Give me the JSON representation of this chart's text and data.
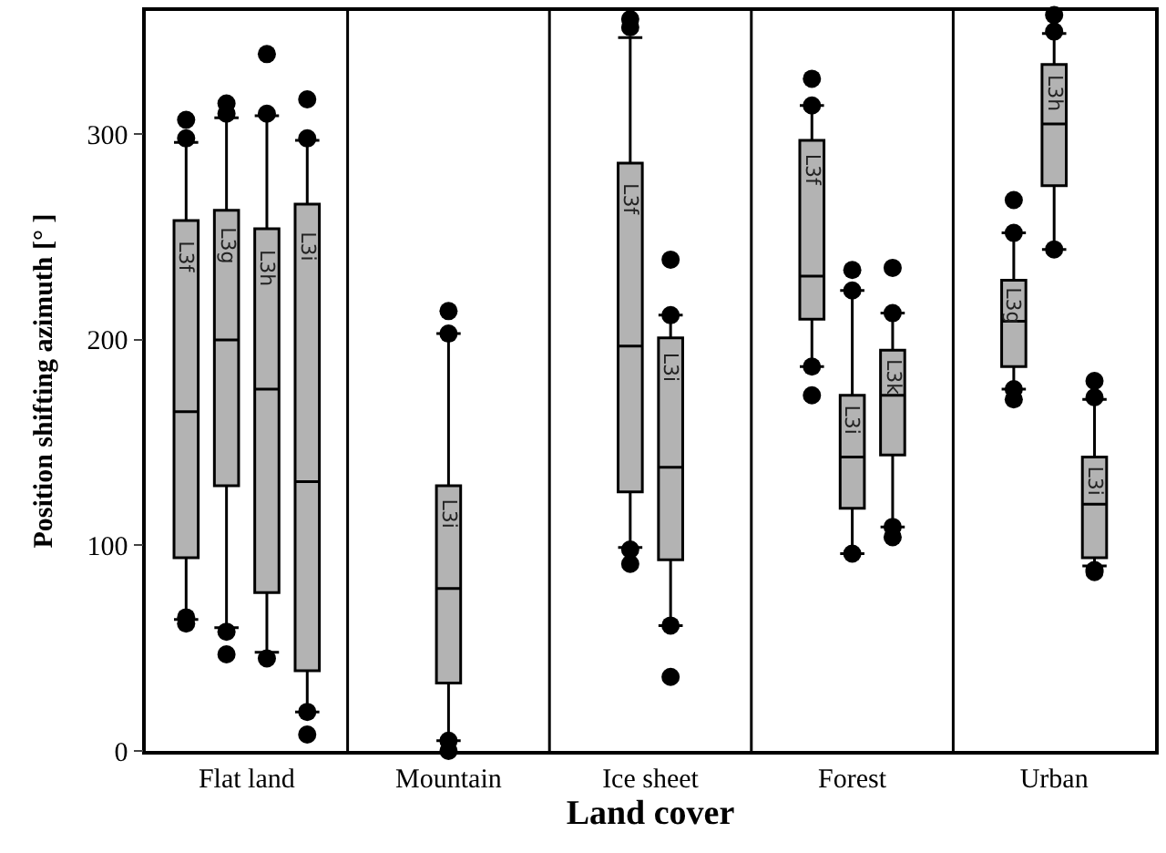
{
  "chart_data": {
    "type": "box",
    "xlabel": "Land cover",
    "ylabel": "Position shifting azimuth [° ]",
    "categories": [
      "Flat land",
      "Mountain",
      "Ice sheet",
      "Forest",
      "Urban"
    ],
    "ylim": [
      0,
      360
    ],
    "yticks": [
      0,
      100,
      200,
      300
    ],
    "marker": "circle",
    "series": [
      {
        "name": "L3f",
        "color": "#b3b3b3",
        "boxes": [
          {
            "low": 64,
            "q1": 94,
            "median": 165,
            "q3": 258,
            "high": 296,
            "outliers": [
              307,
              298,
              62,
              65
            ]
          },
          null,
          {
            "low": 99,
            "q1": 126,
            "median": 197,
            "q3": 286,
            "high": 347,
            "outliers": [
              356,
              352,
              98,
              91
            ]
          },
          {
            "low": 187,
            "q1": 210,
            "median": 231,
            "q3": 297,
            "high": 314,
            "outliers": [
              327,
              314,
              187,
              173
            ]
          },
          null
        ]
      },
      {
        "name": "L3g",
        "color": "#b3b3b3",
        "boxes": [
          {
            "low": 60,
            "q1": 129,
            "median": 200,
            "q3": 263,
            "high": 308,
            "outliers": [
              315,
              310,
              58,
              47
            ]
          },
          null,
          null,
          null,
          {
            "low": 176,
            "q1": 187,
            "median": 209,
            "q3": 229,
            "high": 252,
            "outliers": [
              268,
              252,
              176,
              171
            ]
          }
        ]
      },
      {
        "name": "L3h",
        "color": "#b3b3b3",
        "boxes": [
          {
            "low": 48,
            "q1": 77,
            "median": 176,
            "q3": 254,
            "high": 309,
            "outliers": [
              339,
              310,
              45
            ]
          },
          null,
          null,
          null,
          {
            "low": 244,
            "q1": 275,
            "median": 305,
            "q3": 334,
            "high": 349,
            "outliers": [
              358,
              350,
              244
            ]
          }
        ]
      },
      {
        "name": "L3i",
        "color": "#b3b3b3",
        "boxes": [
          {
            "low": 19,
            "q1": 39,
            "median": 131,
            "q3": 266,
            "high": 297,
            "outliers": [
              317,
              298,
              19,
              8
            ]
          },
          {
            "low": 5,
            "q1": 33,
            "median": 79,
            "q3": 129,
            "high": 203,
            "outliers": [
              214,
              203,
              5,
              0
            ]
          },
          {
            "low": 61,
            "q1": 93,
            "median": 138,
            "q3": 201,
            "high": 212,
            "outliers": [
              239,
              212,
              61,
              36
            ]
          },
          {
            "low": 96,
            "q1": 118,
            "median": 143,
            "q3": 173,
            "high": 224,
            "outliers": [
              234,
              224,
              96
            ]
          },
          {
            "low": 90,
            "q1": 94,
            "median": 120,
            "q3": 143,
            "high": 171,
            "outliers": [
              180,
              172,
              88,
              87
            ]
          }
        ]
      },
      {
        "name": "L3k",
        "color": "#b3b3b3",
        "boxes": [
          null,
          null,
          null,
          {
            "low": 109,
            "q1": 144,
            "median": 173,
            "q3": 195,
            "high": 213,
            "outliers": [
              235,
              213,
              109,
              104
            ]
          },
          null
        ]
      }
    ]
  }
}
